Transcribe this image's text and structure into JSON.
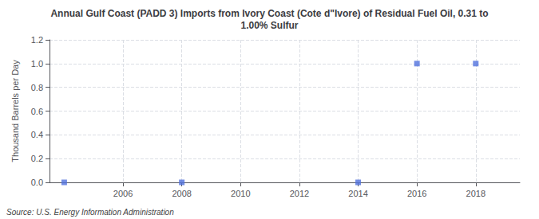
{
  "chart_data": {
    "type": "scatter",
    "title": "Annual Gulf Coast (PADD 3) Imports from Ivory Coast (Cote d\"Ivore) of Residual Fuel Oil, 0.31 to\n1.00% Sulfur",
    "y_label": "Thousand Barrels per Day",
    "annotations": [
      "Source: U.S. Energy Information Administration"
    ],
    "x": [
      2004,
      2008,
      2014,
      2016,
      2018
    ],
    "values": [
      0.0,
      0.0,
      0.0,
      1.0,
      1.0
    ],
    "marker": "square",
    "xlim": [
      2003.5,
      2019.5
    ],
    "xticks": [
      2006,
      2008,
      2010,
      2012,
      2014,
      2016,
      2018
    ],
    "ylim": [
      0.0,
      1.2
    ],
    "yticks": [
      {
        "value": 0.0,
        "label": "0.0"
      },
      {
        "value": 0.2,
        "label": "0.2"
      },
      {
        "value": 0.4,
        "label": "0.4"
      },
      {
        "value": 0.6,
        "label": "0.6"
      },
      {
        "value": 0.8,
        "label": "0.8"
      },
      {
        "value": 1.0,
        "label": "1.0"
      },
      {
        "value": 1.2,
        "label": "1.2"
      }
    ],
    "grid": true
  }
}
